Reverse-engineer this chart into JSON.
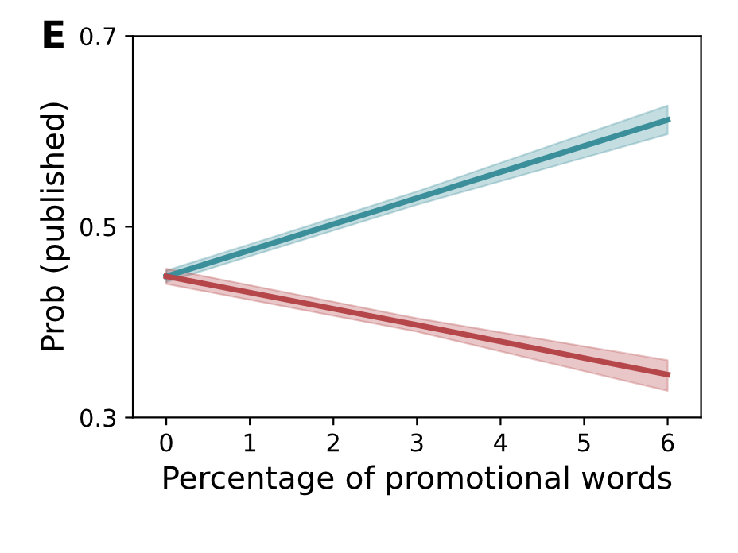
{
  "chart_data": {
    "type": "line",
    "xlabel": "Percentage of promotional words",
    "ylabel": "Prob (published)",
    "annotations": [
      "E"
    ],
    "series": [
      {
        "color": "#3a8f9a",
        "x": [
          0,
          3,
          6
        ],
        "values": [
          0.448,
          0.53,
          0.612
        ],
        "lower": [
          0.442,
          0.523,
          0.597
        ],
        "upper": [
          0.454,
          0.537,
          0.627
        ]
      },
      {
        "color": "#b5464a",
        "x": [
          0,
          3,
          6
        ],
        "values": [
          0.448,
          0.397,
          0.345
        ],
        "lower": [
          0.44,
          0.39,
          0.328
        ],
        "upper": [
          0.456,
          0.404,
          0.36
        ]
      }
    ],
    "xlim": [
      -0.4,
      6.4
    ],
    "xticks": [
      0,
      1,
      2,
      3,
      4,
      5,
      6
    ],
    "ylim": [
      0.3,
      0.7
    ],
    "yticks": [
      0.3,
      0.5,
      0.7
    ],
    "grid": false,
    "line_style": "solid",
    "marker": "none"
  }
}
